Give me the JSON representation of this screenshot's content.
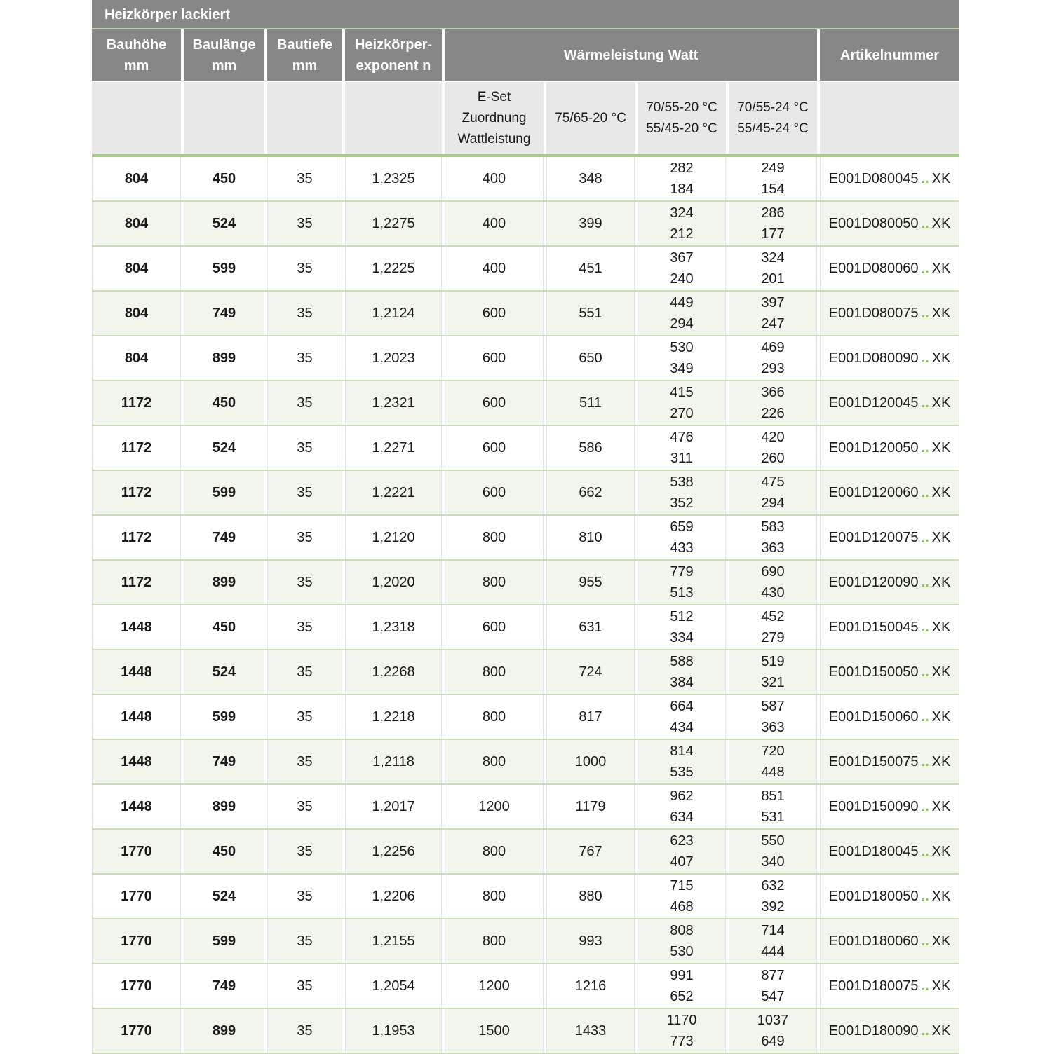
{
  "title": "Heizkörper lackiert",
  "headers": {
    "bauhoehe": [
      "Bauhöhe",
      "mm"
    ],
    "baulaenge": [
      "Baulänge",
      "mm"
    ],
    "bautiefe": [
      "Bautiefe",
      "mm"
    ],
    "exponent": [
      "Heizkörper-",
      "exponent n"
    ],
    "waerme": "Wärmeleistung Watt",
    "artikel": "Artikelnummer"
  },
  "subheaders": {
    "eset": [
      "E-Set",
      "Zuordnung",
      "Wattleistung"
    ],
    "t1": "75/65-20 °C",
    "t2": [
      "70/55-20 °C",
      "55/45-20 °C"
    ],
    "t3": [
      "70/55-24 °C",
      "55/45-24 °C"
    ]
  },
  "dots": "..",
  "rows": [
    {
      "h": "804",
      "l": "450",
      "t": "35",
      "n": "1,2325",
      "e": "400",
      "w1": "348",
      "w2": [
        "282",
        "184"
      ],
      "w3": [
        "249",
        "154"
      ],
      "art": "E001D080045",
      "suffix": "XK"
    },
    {
      "h": "804",
      "l": "524",
      "t": "35",
      "n": "1,2275",
      "e": "400",
      "w1": "399",
      "w2": [
        "324",
        "212"
      ],
      "w3": [
        "286",
        "177"
      ],
      "art": "E001D080050",
      "suffix": "XK"
    },
    {
      "h": "804",
      "l": "599",
      "t": "35",
      "n": "1,2225",
      "e": "400",
      "w1": "451",
      "w2": [
        "367",
        "240"
      ],
      "w3": [
        "324",
        "201"
      ],
      "art": "E001D080060",
      "suffix": "XK"
    },
    {
      "h": "804",
      "l": "749",
      "t": "35",
      "n": "1,2124",
      "e": "600",
      "w1": "551",
      "w2": [
        "449",
        "294"
      ],
      "w3": [
        "397",
        "247"
      ],
      "art": "E001D080075",
      "suffix": "XK"
    },
    {
      "h": "804",
      "l": "899",
      "t": "35",
      "n": "1,2023",
      "e": "600",
      "w1": "650",
      "w2": [
        "530",
        "349"
      ],
      "w3": [
        "469",
        "293"
      ],
      "art": "E001D080090",
      "suffix": "XK"
    },
    {
      "h": "1172",
      "l": "450",
      "t": "35",
      "n": "1,2321",
      "e": "600",
      "w1": "511",
      "w2": [
        "415",
        "270"
      ],
      "w3": [
        "366",
        "226"
      ],
      "art": "E001D120045",
      "suffix": "XK"
    },
    {
      "h": "1172",
      "l": "524",
      "t": "35",
      "n": "1,2271",
      "e": "600",
      "w1": "586",
      "w2": [
        "476",
        "311"
      ],
      "w3": [
        "420",
        "260"
      ],
      "art": "E001D120050",
      "suffix": "XK"
    },
    {
      "h": "1172",
      "l": "599",
      "t": "35",
      "n": "1,2221",
      "e": "600",
      "w1": "662",
      "w2": [
        "538",
        "352"
      ],
      "w3": [
        "475",
        "294"
      ],
      "art": "E001D120060",
      "suffix": "XK"
    },
    {
      "h": "1172",
      "l": "749",
      "t": "35",
      "n": "1,2120",
      "e": "800",
      "w1": "810",
      "w2": [
        "659",
        "433"
      ],
      "w3": [
        "583",
        "363"
      ],
      "art": "E001D120075",
      "suffix": "XK"
    },
    {
      "h": "1172",
      "l": "899",
      "t": "35",
      "n": "1,2020",
      "e": "800",
      "w1": "955",
      "w2": [
        "779",
        "513"
      ],
      "w3": [
        "690",
        "430"
      ],
      "art": "E001D120090",
      "suffix": "XK"
    },
    {
      "h": "1448",
      "l": "450",
      "t": "35",
      "n": "1,2318",
      "e": "600",
      "w1": "631",
      "w2": [
        "512",
        "334"
      ],
      "w3": [
        "452",
        "279"
      ],
      "art": "E001D150045",
      "suffix": "XK"
    },
    {
      "h": "1448",
      "l": "524",
      "t": "35",
      "n": "1,2268",
      "e": "800",
      "w1": "724",
      "w2": [
        "588",
        "384"
      ],
      "w3": [
        "519",
        "321"
      ],
      "art": "E001D150050",
      "suffix": "XK"
    },
    {
      "h": "1448",
      "l": "599",
      "t": "35",
      "n": "1,2218",
      "e": "800",
      "w1": "817",
      "w2": [
        "664",
        "434"
      ],
      "w3": [
        "587",
        "363"
      ],
      "art": "E001D150060",
      "suffix": "XK"
    },
    {
      "h": "1448",
      "l": "749",
      "t": "35",
      "n": "1,2118",
      "e": "800",
      "w1": "1000",
      "w2": [
        "814",
        "535"
      ],
      "w3": [
        "720",
        "448"
      ],
      "art": "E001D150075",
      "suffix": "XK"
    },
    {
      "h": "1448",
      "l": "899",
      "t": "35",
      "n": "1,2017",
      "e": "1200",
      "w1": "1179",
      "w2": [
        "962",
        "634"
      ],
      "w3": [
        "851",
        "531"
      ],
      "art": "E001D150090",
      "suffix": "XK"
    },
    {
      "h": "1770",
      "l": "450",
      "t": "35",
      "n": "1,2256",
      "e": "800",
      "w1": "767",
      "w2": [
        "623",
        "407"
      ],
      "w3": [
        "550",
        "340"
      ],
      "art": "E001D180045",
      "suffix": "XK"
    },
    {
      "h": "1770",
      "l": "524",
      "t": "35",
      "n": "1,2206",
      "e": "800",
      "w1": "880",
      "w2": [
        "715",
        "468"
      ],
      "w3": [
        "632",
        "392"
      ],
      "art": "E001D180050",
      "suffix": "XK"
    },
    {
      "h": "1770",
      "l": "599",
      "t": "35",
      "n": "1,2155",
      "e": "800",
      "w1": "993",
      "w2": [
        "808",
        "530"
      ],
      "w3": [
        "714",
        "444"
      ],
      "art": "E001D180060",
      "suffix": "XK"
    },
    {
      "h": "1770",
      "l": "749",
      "t": "35",
      "n": "1,2054",
      "e": "1200",
      "w1": "1216",
      "w2": [
        "991",
        "652"
      ],
      "w3": [
        "877",
        "547"
      ],
      "art": "E001D180075",
      "suffix": "XK"
    },
    {
      "h": "1770",
      "l": "899",
      "t": "35",
      "n": "1,1953",
      "e": "1500",
      "w1": "1433",
      "w2": [
        "1170",
        "773"
      ],
      "w3": [
        "1037",
        "649"
      ],
      "art": "E001D180090",
      "suffix": "XK"
    }
  ],
  "colors": {
    "header": "#878787",
    "subheader": "#e8e8e8",
    "accent": "#a6cc85",
    "alt_row": "#f1f5ec",
    "dots": "#8cbf4e"
  }
}
